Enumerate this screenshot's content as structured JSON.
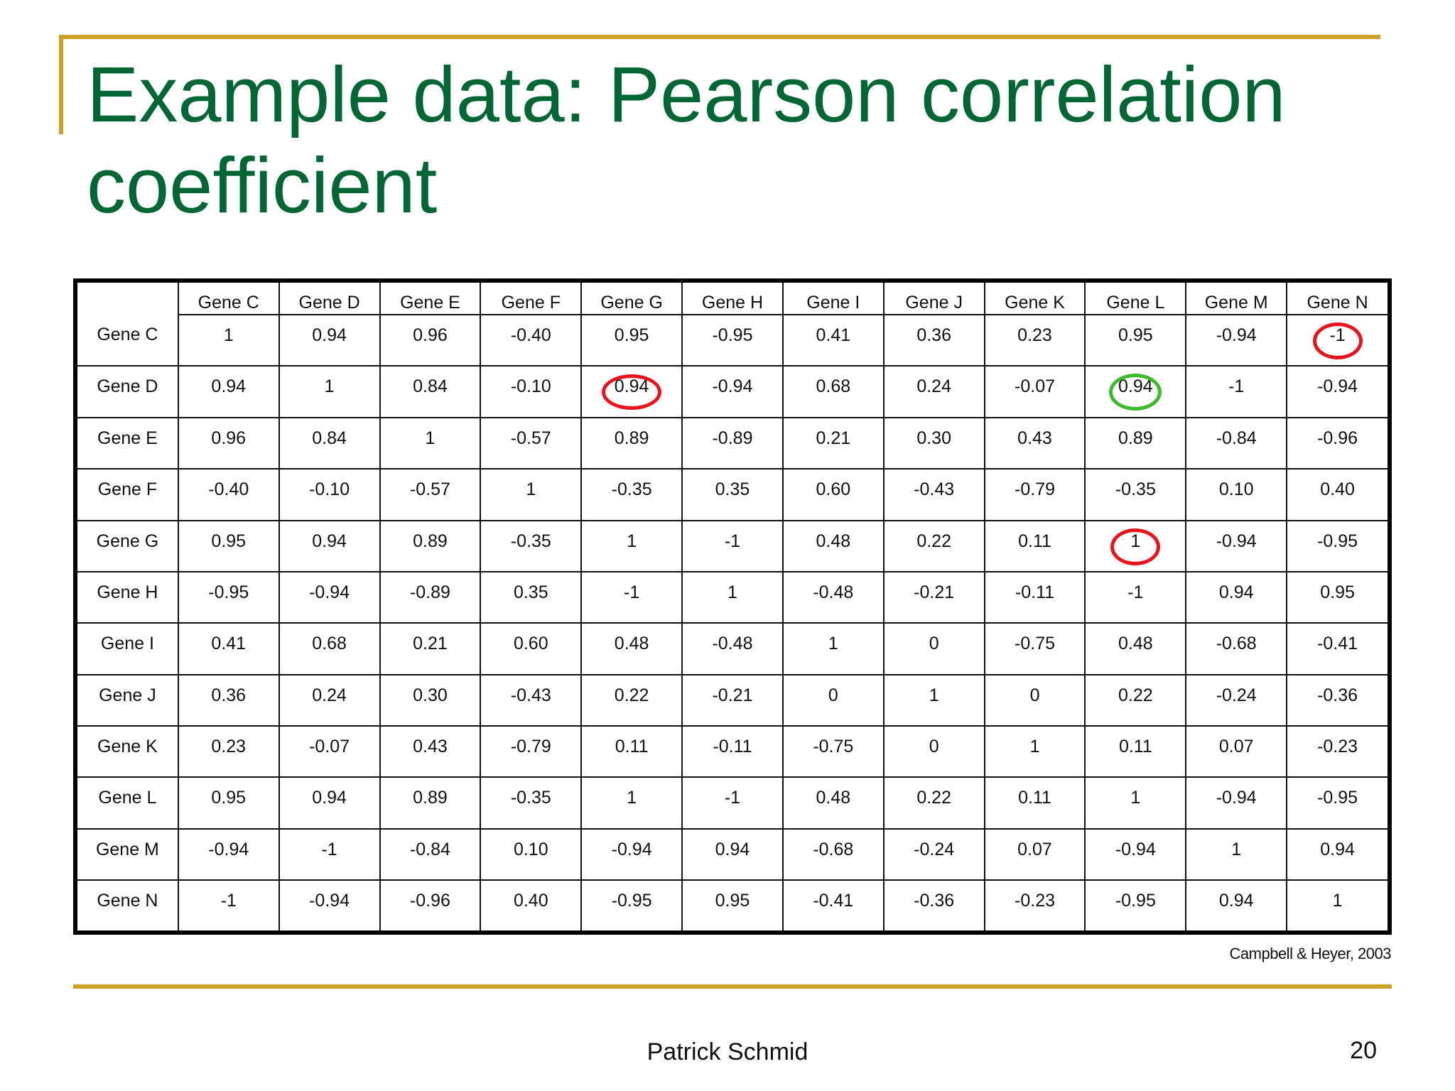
{
  "slide": {
    "title": "Example data: Pearson correlation coefficient",
    "citation": "Campbell & Heyer, 2003",
    "author": "Patrick Schmid",
    "page_number": "20",
    "colors": {
      "title": "#006633",
      "rules": "#c9a227",
      "red_highlight": "#e8131b",
      "green_highlight": "#3dbb2c"
    }
  },
  "matrix": {
    "columns": [
      "Gene C",
      "Gene D",
      "Gene E",
      "Gene F",
      "Gene G",
      "Gene H",
      "Gene I",
      "Gene J",
      "Gene K",
      "Gene L",
      "Gene M",
      "Gene N"
    ],
    "rows": [
      {
        "label": "Gene C",
        "values": [
          "1",
          "0.94",
          "0.96",
          "-0.40",
          "0.95",
          "-0.95",
          "0.41",
          "0.36",
          "0.23",
          "0.95",
          "-0.94",
          "-1"
        ]
      },
      {
        "label": "Gene D",
        "values": [
          "0.94",
          "1",
          "0.84",
          "-0.10",
          "0.94",
          "-0.94",
          "0.68",
          "0.24",
          "-0.07",
          "0.94",
          "-1",
          "-0.94"
        ]
      },
      {
        "label": "Gene E",
        "values": [
          "0.96",
          "0.84",
          "1",
          "-0.57",
          "0.89",
          "-0.89",
          "0.21",
          "0.30",
          "0.43",
          "0.89",
          "-0.84",
          "-0.96"
        ]
      },
      {
        "label": "Gene F",
        "values": [
          "-0.40",
          "-0.10",
          "-0.57",
          "1",
          "-0.35",
          "0.35",
          "0.60",
          "-0.43",
          "-0.79",
          "-0.35",
          "0.10",
          "0.40"
        ]
      },
      {
        "label": "Gene G",
        "values": [
          "0.95",
          "0.94",
          "0.89",
          "-0.35",
          "1",
          "-1",
          "0.48",
          "0.22",
          "0.11",
          "1",
          "-0.94",
          "-0.95"
        ]
      },
      {
        "label": "Gene H",
        "values": [
          "-0.95",
          "-0.94",
          "-0.89",
          "0.35",
          "-1",
          "1",
          "-0.48",
          "-0.21",
          "-0.11",
          "-1",
          "0.94",
          "0.95"
        ]
      },
      {
        "label": "Gene I",
        "values": [
          "0.41",
          "0.68",
          "0.21",
          "0.60",
          "0.48",
          "-0.48",
          "1",
          "0",
          "-0.75",
          "0.48",
          "-0.68",
          "-0.41"
        ]
      },
      {
        "label": "Gene J",
        "values": [
          "0.36",
          "0.24",
          "0.30",
          "-0.43",
          "0.22",
          "-0.21",
          "0",
          "1",
          "0",
          "0.22",
          "-0.24",
          "-0.36"
        ]
      },
      {
        "label": "Gene K",
        "values": [
          "0.23",
          "-0.07",
          "0.43",
          "-0.79",
          "0.11",
          "-0.11",
          "-0.75",
          "0",
          "1",
          "0.11",
          "0.07",
          "-0.23"
        ]
      },
      {
        "label": "Gene L",
        "values": [
          "0.95",
          "0.94",
          "0.89",
          "-0.35",
          "1",
          "-1",
          "0.48",
          "0.22",
          "0.11",
          "1",
          "-0.94",
          "-0.95"
        ]
      },
      {
        "label": "Gene M",
        "values": [
          "-0.94",
          "-1",
          "-0.84",
          "0.10",
          "-0.94",
          "0.94",
          "-0.68",
          "-0.24",
          "0.07",
          "-0.94",
          "1",
          "0.94"
        ]
      },
      {
        "label": "Gene N",
        "values": [
          "-1",
          "-0.94",
          "-0.96",
          "0.40",
          "-0.95",
          "0.95",
          "-0.41",
          "-0.36",
          "-0.23",
          "-0.95",
          "0.94",
          "1"
        ]
      }
    ],
    "highlights": [
      {
        "row": "Gene C",
        "column": "Gene N",
        "color": "red"
      },
      {
        "row": "Gene D",
        "column": "Gene G",
        "color": "red"
      },
      {
        "row": "Gene D",
        "column": "Gene L",
        "color": "green"
      },
      {
        "row": "Gene G",
        "column": "Gene L",
        "color": "red"
      }
    ]
  }
}
